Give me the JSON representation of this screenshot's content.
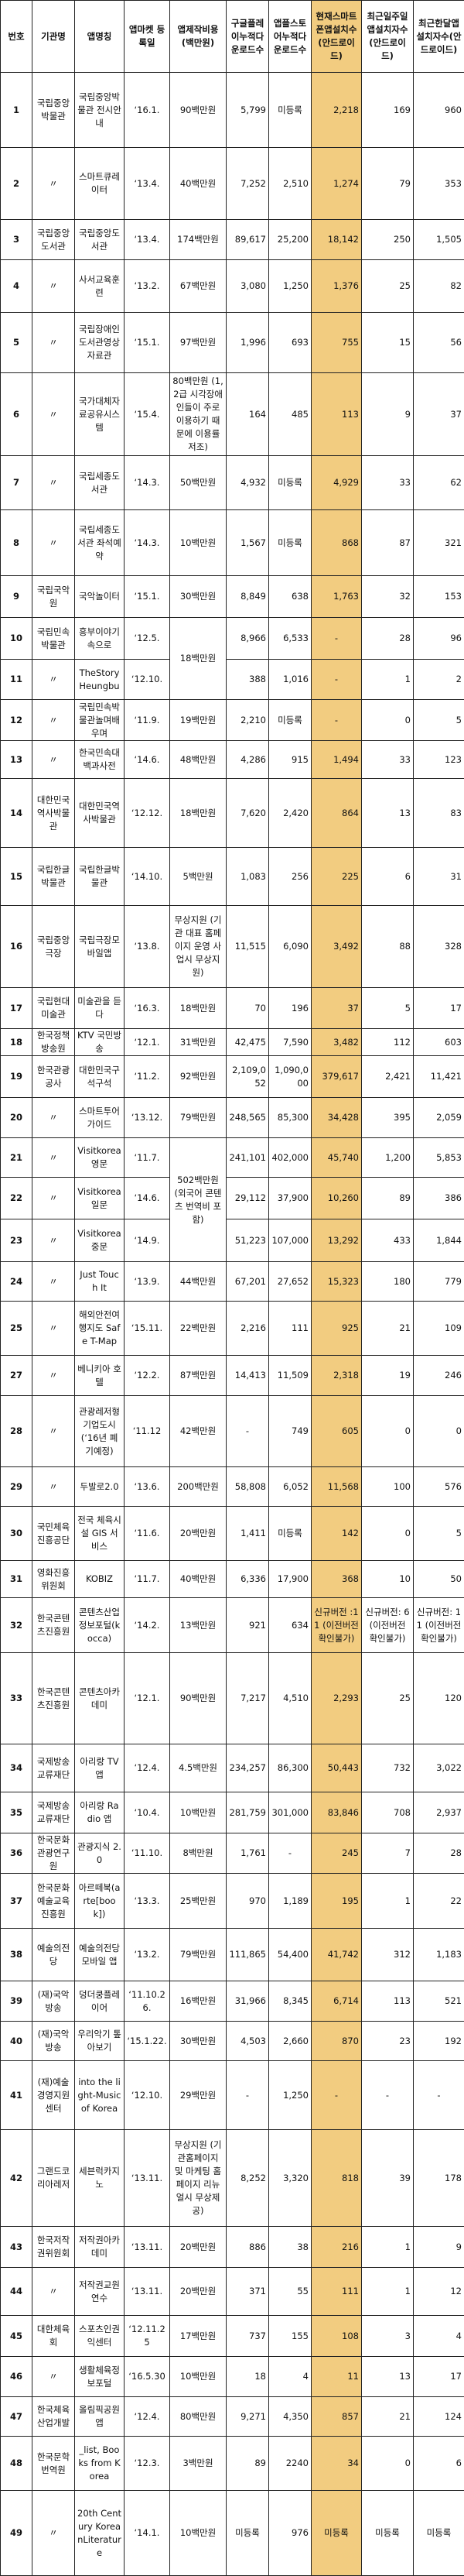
{
  "colors": {
    "highlight": "#f2cc80",
    "border": "#222222"
  },
  "headers": [
    "번호",
    "기관명",
    "앱명칭",
    "앱마켓 등록일",
    "앱제작비용 (백만원)",
    "구글플레이누적다운로드수",
    "앱플스토어누적다운로드수",
    "현재스마트폰앱설치수(안드로이드)",
    "최근일주일앱설치자수(안드로이드)",
    "최근한달앱설치자수(안드로이드)"
  ],
  "rows": [
    [
      "1",
      "국립중앙박물관",
      "국립중앙박물관 전시안내",
      "‘16.1.",
      "90백만원",
      "5,799",
      "미등록",
      "2,218",
      "169",
      "960"
    ],
    [
      "2",
      "〃",
      "스마트큐레이터",
      "‘13.4.",
      "40백만원",
      "7,252",
      "2,510",
      "1,274",
      "79",
      "353"
    ],
    [
      "3",
      "국립중앙도서관",
      "국립중앙도서관",
      "‘13.4.",
      "174백만원",
      "89,617",
      "25,200",
      "18,142",
      "250",
      "1,505"
    ],
    [
      "4",
      "〃",
      "사서교육훈련",
      "‘13.2.",
      "67백만원",
      "3,080",
      "1,250",
      "1,376",
      "25",
      "82"
    ],
    [
      "5",
      "〃",
      "국립장애인도서관영상자료관",
      "‘15.1.",
      "97백만원",
      "1,996",
      "693",
      "755",
      "15",
      "56"
    ],
    [
      "6",
      "〃",
      "국가대체자료공유시스템",
      "‘15.4.",
      "80백만원 (1,2급 시각장애인들이 주로 이용하기 때문에 이용률 저조)",
      "164",
      "485",
      "113",
      "9",
      "37"
    ],
    [
      "7",
      "〃",
      "국립세종도서관",
      "‘14.3.",
      "50백만원",
      "4,932",
      "미등록",
      "4,929",
      "33",
      "62"
    ],
    [
      "8",
      "〃",
      "국립세종도서관 좌석예약",
      "‘14.3.",
      "10백만원",
      "1,567",
      "미등록",
      "868",
      "87",
      "321"
    ],
    [
      "9",
      "국립국악원",
      "국악놀이터",
      "‘15.1.",
      "30백만원",
      "8,849",
      "638",
      "1,763",
      "32",
      "153"
    ],
    [
      "10",
      "국립민속박물관",
      "흥부이야기속으로",
      "‘12.5.",
      "18백만원",
      "8,966",
      "6,533",
      "-",
      "28",
      "96"
    ],
    [
      "11",
      "〃",
      "TheStory Heungbu",
      "‘12.10.",
      null,
      "388",
      "1,016",
      "-",
      "1",
      "2"
    ],
    [
      "12",
      "〃",
      "국립민속박물관놀며배우며",
      "‘11.9.",
      "19백만원",
      "2,210",
      "미등록",
      "-",
      "0",
      "5"
    ],
    [
      "13",
      "〃",
      "한국민속대백과사전",
      "‘14.6.",
      "48백만원",
      "4,286",
      "915",
      "1,494",
      "33",
      "123"
    ],
    [
      "14",
      "대한민국역사박물관",
      "대한민국역사박물관",
      "‘12.12.",
      "18백만원",
      "7,620",
      "2,420",
      "864",
      "13",
      "83"
    ],
    [
      "15",
      "국립한글박물관",
      "국립한글박물관",
      "‘14.10.",
      "5백만원",
      "1,083",
      "256",
      "225",
      "6",
      "31"
    ],
    [
      "16",
      "국립중앙극장",
      "국립극장모바일앱",
      "‘13.8.",
      "무상지원 (기관 대표 홈페이지 운영 사업시 무상지원)",
      "11,515",
      "6,090",
      "3,492",
      "88",
      "328"
    ],
    [
      "17",
      "국립현대미술관",
      "미술관을 듣다",
      "‘16.3.",
      "18백만원",
      "70",
      "196",
      "37",
      "5",
      "17"
    ],
    [
      "18",
      "한국정책방송원",
      "KTV 국민방송",
      "‘12.1.",
      "31백만원",
      "42,475",
      "7,590",
      "3,482",
      "112",
      "603"
    ],
    [
      "19",
      "한국관광공사",
      "대한민국구석구석",
      "‘11.2.",
      "92백만원",
      "2,109,052",
      "1,090,000",
      "379,617",
      "2,421",
      "11,421"
    ],
    [
      "20",
      "〃",
      "스마트투어가이드",
      "‘13.12.",
      "79백만원",
      "248,565",
      "85,300",
      "34,428",
      "395",
      "2,059"
    ],
    [
      "21",
      "〃",
      "Visitkorea 영문",
      "‘11.7.",
      "502백만원 (외국어 콘텐츠 번역비 포함)",
      "241,101",
      "402,000",
      "45,740",
      "1,200",
      "5,853"
    ],
    [
      "22",
      "〃",
      "Visitkorea 일문",
      "‘14.6.",
      null,
      "29,112",
      "37,900",
      "10,260",
      "89",
      "386"
    ],
    [
      "23",
      "〃",
      "Visitkorea 중문",
      "‘14.9.",
      null,
      "51,223",
      "107,000",
      "13,292",
      "433",
      "1,844"
    ],
    [
      "24",
      "〃",
      "Just Touch It",
      "‘13.9.",
      "44백만원",
      "67,201",
      "27,652",
      "15,323",
      "180",
      "779"
    ],
    [
      "25",
      "〃",
      "해외안전여행지도 Safe T-Map",
      "‘15.11.",
      "22백만원",
      "2,216",
      "111",
      "925",
      "21",
      "109"
    ],
    [
      "27",
      "〃",
      "베니키아 호텔",
      "‘12.2.",
      "87백만원",
      "14,413",
      "11,509",
      "2,318",
      "19",
      "246"
    ],
    [
      "28",
      "〃",
      "관광레저형 기업도시 (‘16년 폐기예정)",
      "‘11.12",
      "42백만원",
      "-",
      "749",
      "605",
      "0",
      "0"
    ],
    [
      "29",
      "〃",
      "두발로2.0",
      "‘13.6.",
      "200백만원",
      "58,808",
      "6,052",
      "11,568",
      "100",
      "576"
    ],
    [
      "30",
      "국민체육진흥공단",
      "전국 체육시설 GIS 서비스",
      "‘11.6.",
      "20백만원",
      "1,411",
      "미등록",
      "142",
      "0",
      "5"
    ],
    [
      "31",
      "영화진흥위원회",
      "KOBIZ",
      "‘11.7.",
      "40백만원",
      "6,336",
      "17,900",
      "368",
      "10",
      "50"
    ],
    [
      "32",
      "한국콘텐츠진흥원",
      "콘텐츠산업정보포털(kocca)",
      "‘14.2.",
      "13백만원",
      "921",
      "634",
      "신규버전 :11 (이전버전 확인불가)",
      "신규버전: 6 (이전버전 확인불가)",
      "신규버전: 11 (이전버전 확인불가)"
    ],
    [
      "33",
      "한국콘텐츠진흥원",
      "콘텐츠아카데미",
      "‘12.1.",
      "90백만원",
      "7,217",
      "4,510",
      "2,293",
      "25",
      "120"
    ],
    [
      "34",
      "국제방송교류재단",
      "아리랑 TV 앱",
      "‘12.4.",
      "4.5백만원",
      "234,257",
      "86,300",
      "50,443",
      "732",
      "3,022"
    ],
    [
      "35",
      "국제방송교류재단",
      "아리랑 Radio 앱",
      "‘10.4.",
      "10백만원",
      "281,759",
      "301,000",
      "83,846",
      "708",
      "2,937"
    ],
    [
      "36",
      "한국문화관광연구원",
      "관광지식 2.0",
      "‘11.10.",
      "8백만원",
      "1,761",
      "-",
      "245",
      "7",
      "28"
    ],
    [
      "37",
      "한국문화예술교육진흥원",
      "아르떼북(arte[book])",
      "‘13.3.",
      "25백만원",
      "970",
      "1,189",
      "195",
      "1",
      "22"
    ],
    [
      "38",
      "예술의전당",
      "예술의전당 모바일 앱",
      "‘13.2.",
      "79백만원",
      "111,865",
      "54,400",
      "41,742",
      "312",
      "1,183"
    ],
    [
      "39",
      "(재)국악방송",
      "덩더쿵플레이어",
      "‘11.10.26.",
      "16백만원",
      "31,966",
      "8,345",
      "6,714",
      "113",
      "521"
    ],
    [
      "40",
      "(재)국악방송",
      "우리악기 톺아보기",
      "‘15.1.22.",
      "30백만원",
      "4,503",
      "2,660",
      "870",
      "23",
      "192"
    ],
    [
      "41",
      "(재)예술경영지원센터",
      "into the light-Music of Korea",
      "‘12.10.",
      "29백만원",
      "-",
      "1,250",
      "-",
      "-",
      "-"
    ],
    [
      "42",
      "그랜드코리아레저",
      "세븐럭카지노",
      "‘13.11.",
      "무상지원 (기관홈페이지 및 마케팅 홈페이지 리뉴얼시 무상제공)",
      "8,252",
      "3,320",
      "818",
      "39",
      "178"
    ],
    [
      "43",
      "한국저작권위원회",
      "저작권아카데미",
      "‘13.11.",
      "20백만원",
      "886",
      "38",
      "216",
      "1",
      "9"
    ],
    [
      "44",
      "〃",
      "저작권교원연수",
      "‘13.11.",
      "20백만원",
      "371",
      "55",
      "111",
      "1",
      "12"
    ],
    [
      "45",
      "대한체육회",
      "스포츠인권익센터",
      "‘12.11.25",
      "17백만원",
      "737",
      "155",
      "108",
      "3",
      "4"
    ],
    [
      "46",
      "〃",
      "생활체육정보포털",
      "‘16.5.30",
      "10백만원",
      "18",
      "4",
      "11",
      "13",
      "17"
    ],
    [
      "47",
      "한국체육산업개발",
      "올림픽공원 앱",
      "‘12.4.",
      "80백만원",
      "9,271",
      "4,350",
      "857",
      "21",
      "124"
    ],
    [
      "48",
      "한국문학번역원",
      "_list, Books from Korea",
      "‘12.3.",
      "3백만원",
      "89",
      "2240",
      "34",
      "0",
      "6"
    ],
    [
      "49",
      "〃",
      "20th Century KoreanLiterature",
      "‘14.1.",
      "10백만원",
      "미등록",
      "976",
      "미등록",
      "미등록",
      "미등록"
    ]
  ]
}
